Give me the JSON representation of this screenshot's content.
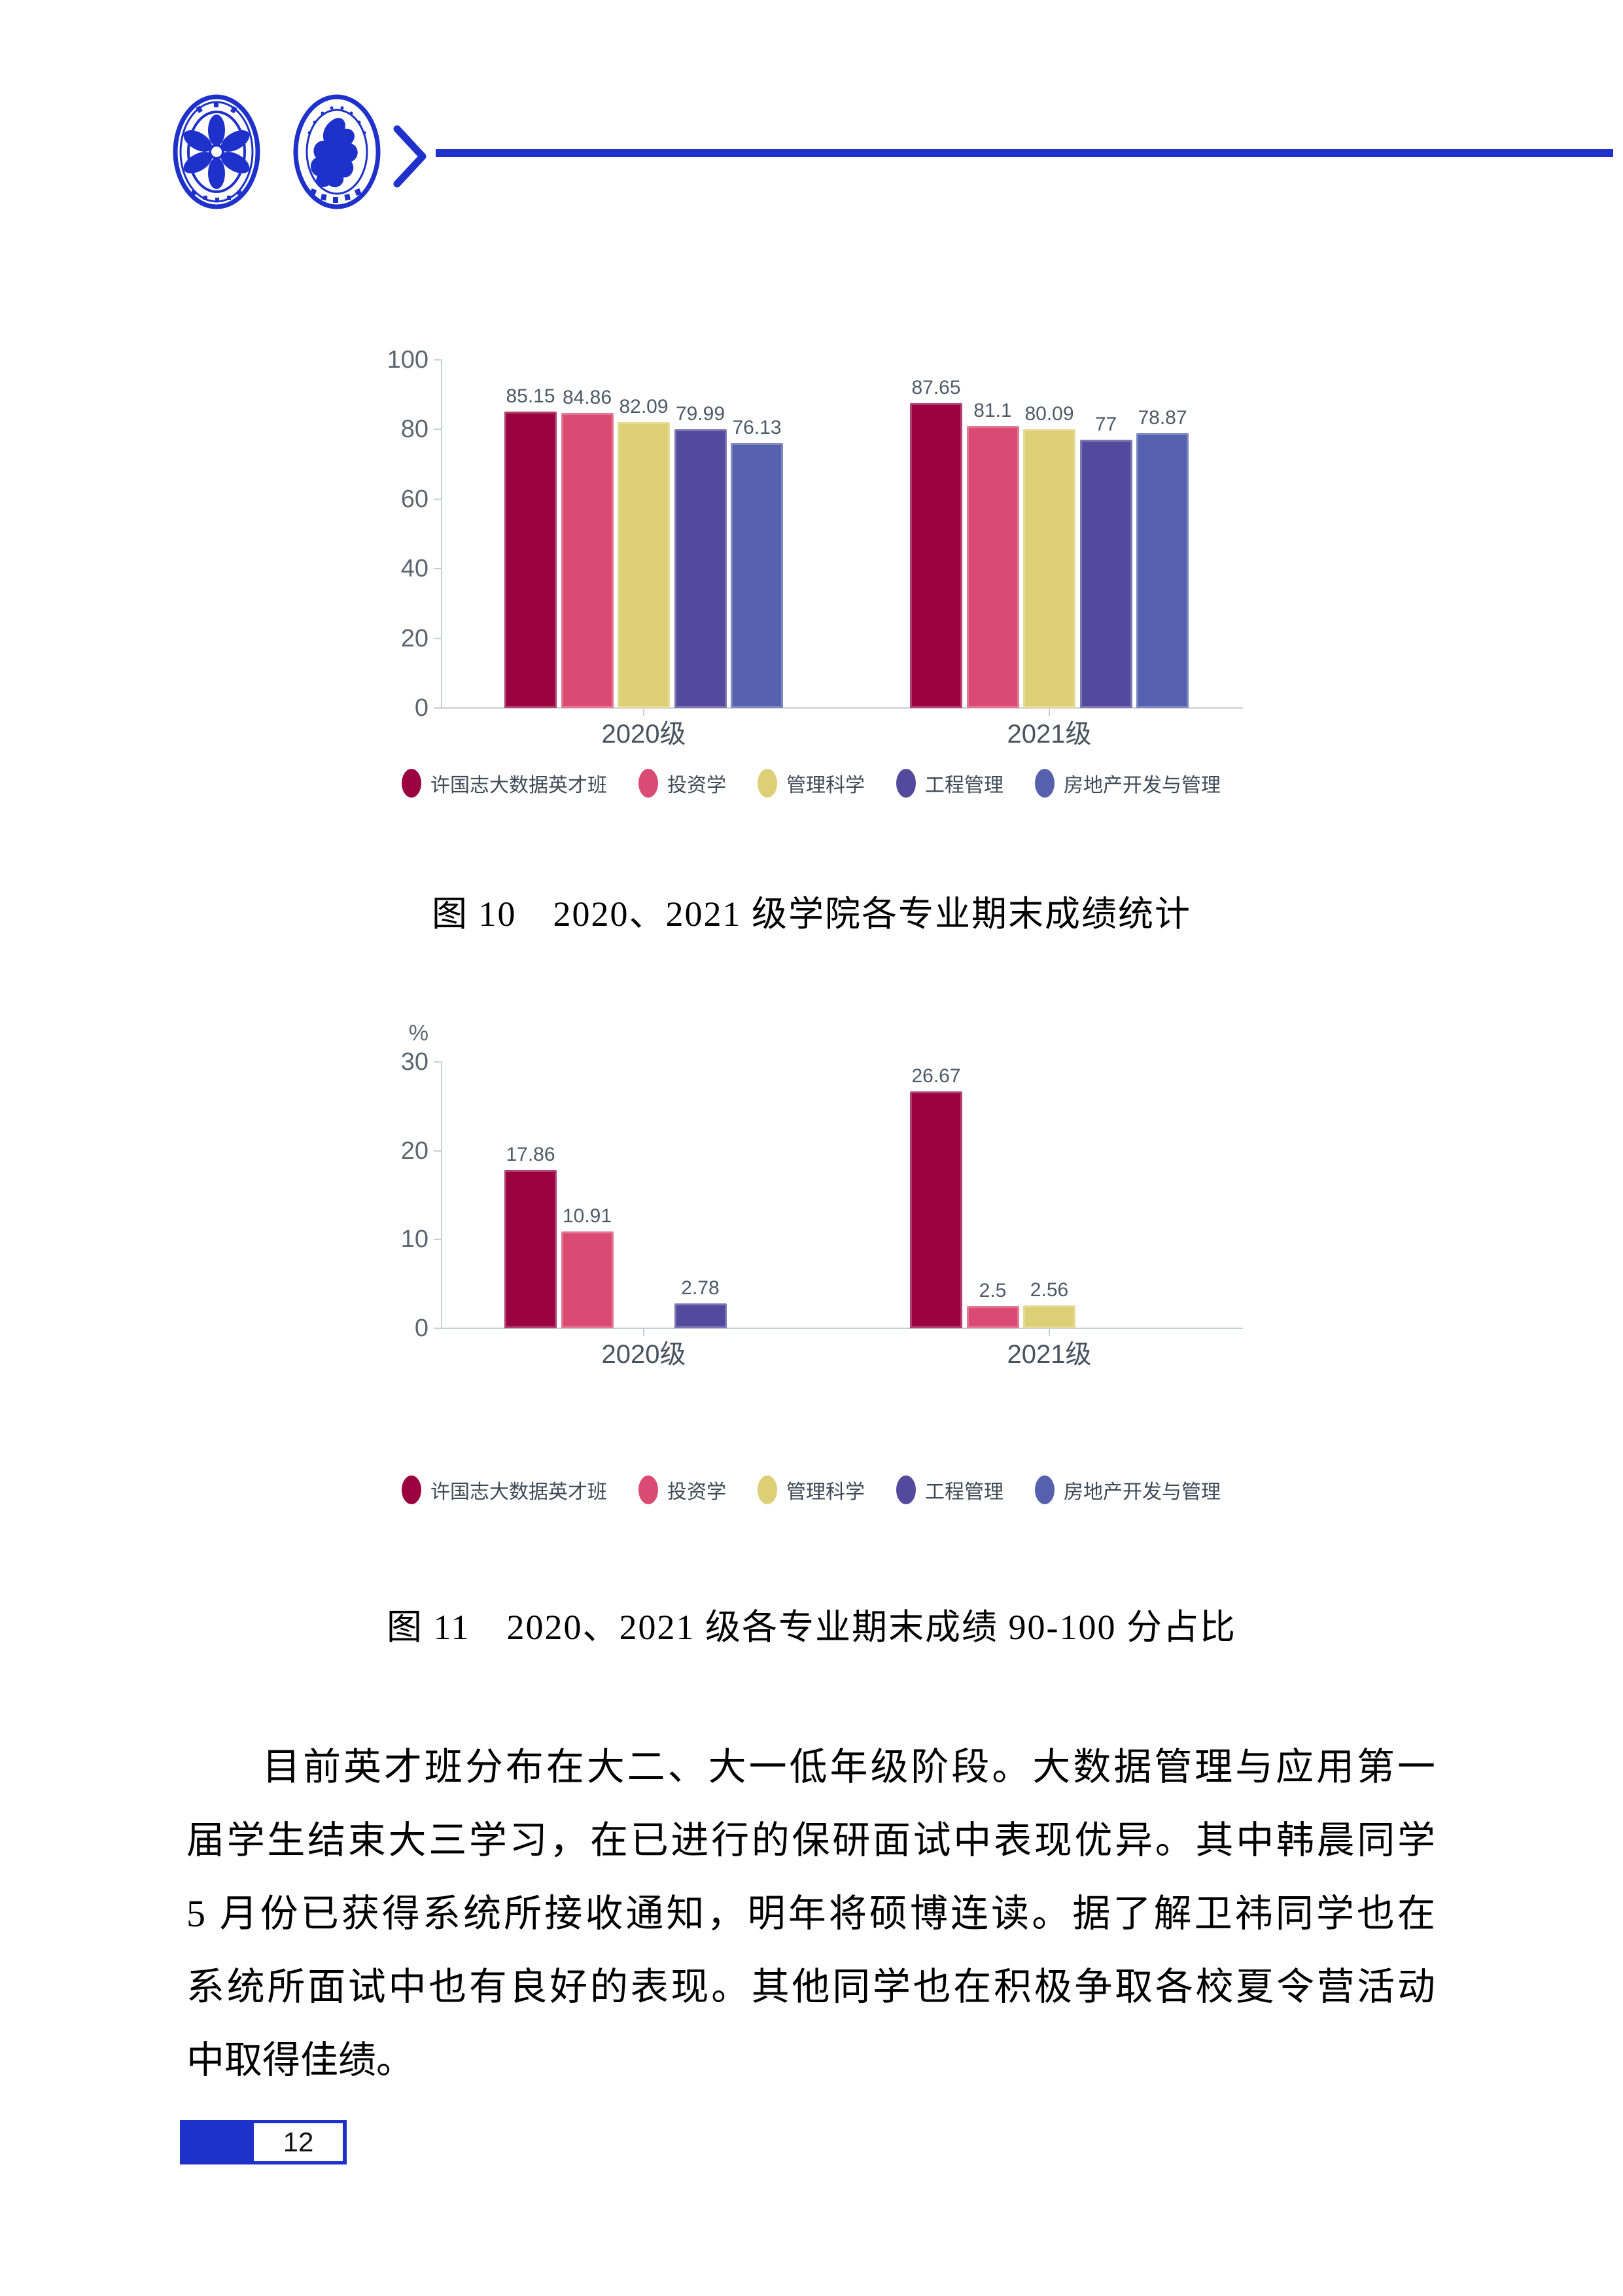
{
  "theme": {
    "accent_blue": "#1e31cb",
    "axis_line_color": "#c9ced6",
    "tick_label_color": "#5b6770",
    "value_label_color": "#4d5a68",
    "category_label_color": "#47535e",
    "legend_label_color": "#3e4b57"
  },
  "header": {
    "logo_icons": [
      "cas-emblem-logo-icon",
      "cufe-emblem-logo-icon"
    ],
    "divider_icon": "chevron-right-icon"
  },
  "chart_data": [
    {
      "type": "bar",
      "title": "",
      "categories": [
        "2020级",
        "2021级"
      ],
      "series": [
        {
          "name": "许国志大数据英才班",
          "color": "#9a0340",
          "values": [
            85.15,
            87.65
          ],
          "labels": [
            "85.15",
            "87.65"
          ]
        },
        {
          "name": "投资学",
          "color": "#da4a73",
          "values": [
            84.86,
            81.1
          ],
          "labels": [
            "84.86",
            "81.1"
          ]
        },
        {
          "name": "管理科学",
          "color": "#dccf75",
          "values": [
            82.09,
            80.09
          ],
          "labels": [
            "82.09",
            "80.09"
          ]
        },
        {
          "name": "工程管理",
          "color": "#544a9d",
          "values": [
            79.99,
            77
          ],
          "labels": [
            "79.99",
            "77"
          ]
        },
        {
          "name": "房地产开发与管理",
          "color": "#5661ae",
          "values": [
            76.13,
            78.87
          ],
          "labels": [
            "76.13",
            "78.87"
          ]
        }
      ],
      "ylim": [
        0,
        100
      ],
      "yticks": [
        0,
        20,
        40,
        60,
        80,
        100
      ],
      "unit_label": "",
      "xlabel": "",
      "ylabel": "",
      "grid": false,
      "legend_position": "bottom"
    },
    {
      "type": "bar",
      "title": "",
      "categories": [
        "2020级",
        "2021级"
      ],
      "series": [
        {
          "name": "许国志大数据英才班",
          "color": "#9a0340",
          "values": [
            17.86,
            26.67
          ],
          "labels": [
            "17.86",
            "26.67"
          ]
        },
        {
          "name": "投资学",
          "color": "#da4a73",
          "values": [
            10.91,
            2.5
          ],
          "labels": [
            "10.91",
            "2.5"
          ]
        },
        {
          "name": "管理科学",
          "color": "#dccf75",
          "values": [
            0,
            2.56
          ],
          "labels": [
            "",
            "2.56"
          ]
        },
        {
          "name": "工程管理",
          "color": "#544a9d",
          "values": [
            2.78,
            0
          ],
          "labels": [
            "2.78",
            ""
          ]
        },
        {
          "name": "房地产开发与管理",
          "color": "#5661ae",
          "values": [
            0,
            0
          ],
          "labels": [
            "",
            ""
          ]
        }
      ],
      "ylim": [
        0,
        30
      ],
      "yticks": [
        0,
        10,
        20,
        30
      ],
      "unit_label": "%",
      "xlabel": "",
      "ylabel": "%",
      "grid": false,
      "legend_position": "bottom"
    }
  ],
  "captions": {
    "fig10": "图 10　2020、2021 级学院各专业期末成绩统计",
    "fig11": "图 11　2020、2021 级各专业期末成绩 90-100 分占比"
  },
  "paragraph": {
    "lines": [
      "目前英才班分布在大二、大一低年级阶段。大数据管理与应用第一",
      "届学生结束大三学习，在已进行的保研面试中表现优异。其中韩晨同学",
      "5 月份已获得系统所接收通知，明年将硕博连读。据了解卫祎同学也在",
      "系统所面试中也有良好的表现。其他同学也在积极争取各校夏令营活动",
      "中取得佳绩。"
    ]
  },
  "page": {
    "number": "12"
  }
}
